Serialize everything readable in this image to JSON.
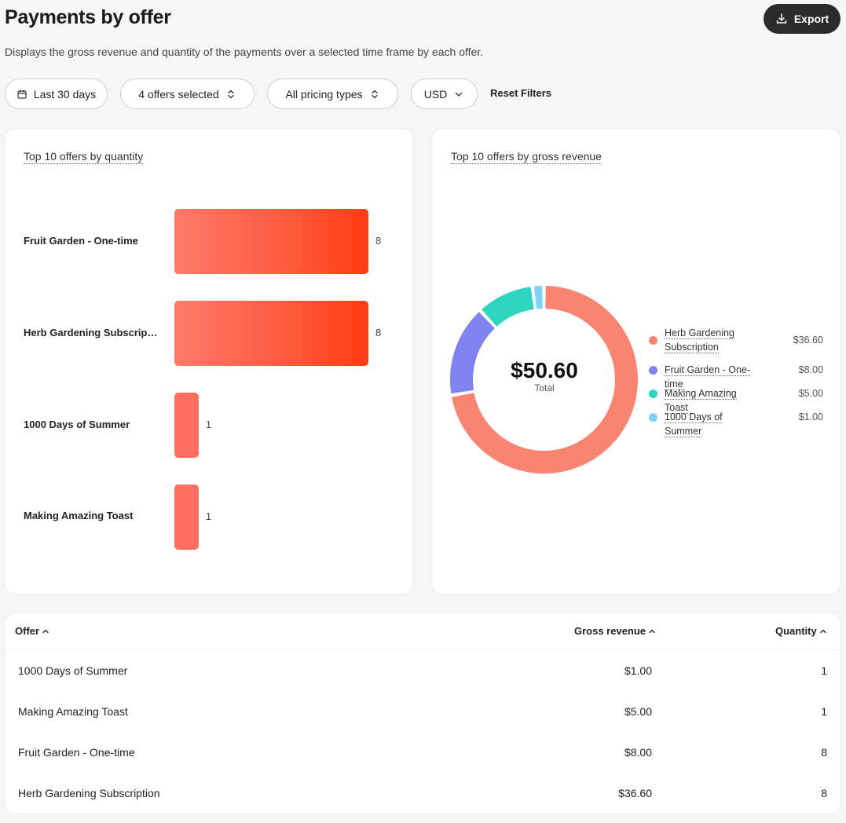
{
  "header": {
    "title": "Payments by offer",
    "subtitle": "Displays the gross revenue and quantity of the payments over a selected time frame by each offer.",
    "export_label": "Export"
  },
  "filters": {
    "date": "Last 30 days",
    "offers": "4 offers selected",
    "pricing": "All pricing types",
    "currency": "USD",
    "reset": "Reset Filters"
  },
  "quantity_chart": {
    "title": "Top 10 offers by quantity",
    "items": [
      {
        "label": "Fruit Garden - One-time",
        "value": "8"
      },
      {
        "label": "Herb Gardening Subscription",
        "value": "8"
      },
      {
        "label": "1000 Days of Summer",
        "value": "1"
      },
      {
        "label": "Making Amazing Toast",
        "value": "1"
      }
    ]
  },
  "revenue_chart": {
    "title": "Top 10 offers by gross revenue",
    "total": "$50.60",
    "total_label": "Total",
    "legend": [
      {
        "label": "Herb Gardening Subscription",
        "value": "$36.60",
        "color": "#f98472"
      },
      {
        "label": "Fruit Garden - One-time",
        "value": "$8.00",
        "color": "#7f83f2"
      },
      {
        "label": "Making Amazing Toast",
        "value": "$5.00",
        "color": "#2dd4bf"
      },
      {
        "label": "1000 Days of Summer",
        "value": "$1.00",
        "color": "#7dd3f5"
      }
    ]
  },
  "chart_data": [
    {
      "type": "bar",
      "title": "Top 10 offers by quantity",
      "categories": [
        "Fruit Garden - One-time",
        "Herb Gardening Subscription",
        "1000 Days of Summer",
        "Making Amazing Toast"
      ],
      "values": [
        8,
        8,
        1,
        1
      ]
    },
    {
      "type": "pie",
      "title": "Top 10 offers by gross revenue",
      "categories": [
        "Herb Gardening Subscription",
        "Fruit Garden - One-time",
        "Making Amazing Toast",
        "1000 Days of Summer"
      ],
      "values": [
        36.6,
        8.0,
        5.0,
        1.0
      ],
      "colors": [
        "#f98472",
        "#7f83f2",
        "#2dd4bf",
        "#7dd3f5"
      ]
    }
  ],
  "table": {
    "headers": {
      "offer": "Offer",
      "revenue": "Gross revenue",
      "quantity": "Quantity"
    },
    "rows": [
      {
        "offer": "1000 Days of Summer",
        "revenue": "$1.00",
        "quantity": "1"
      },
      {
        "offer": "Making Amazing Toast",
        "revenue": "$5.00",
        "quantity": "1"
      },
      {
        "offer": "Fruit Garden - One-time",
        "revenue": "$8.00",
        "quantity": "8"
      },
      {
        "offer": "Herb Gardening Subscription",
        "revenue": "$36.60",
        "quantity": "8"
      }
    ]
  }
}
